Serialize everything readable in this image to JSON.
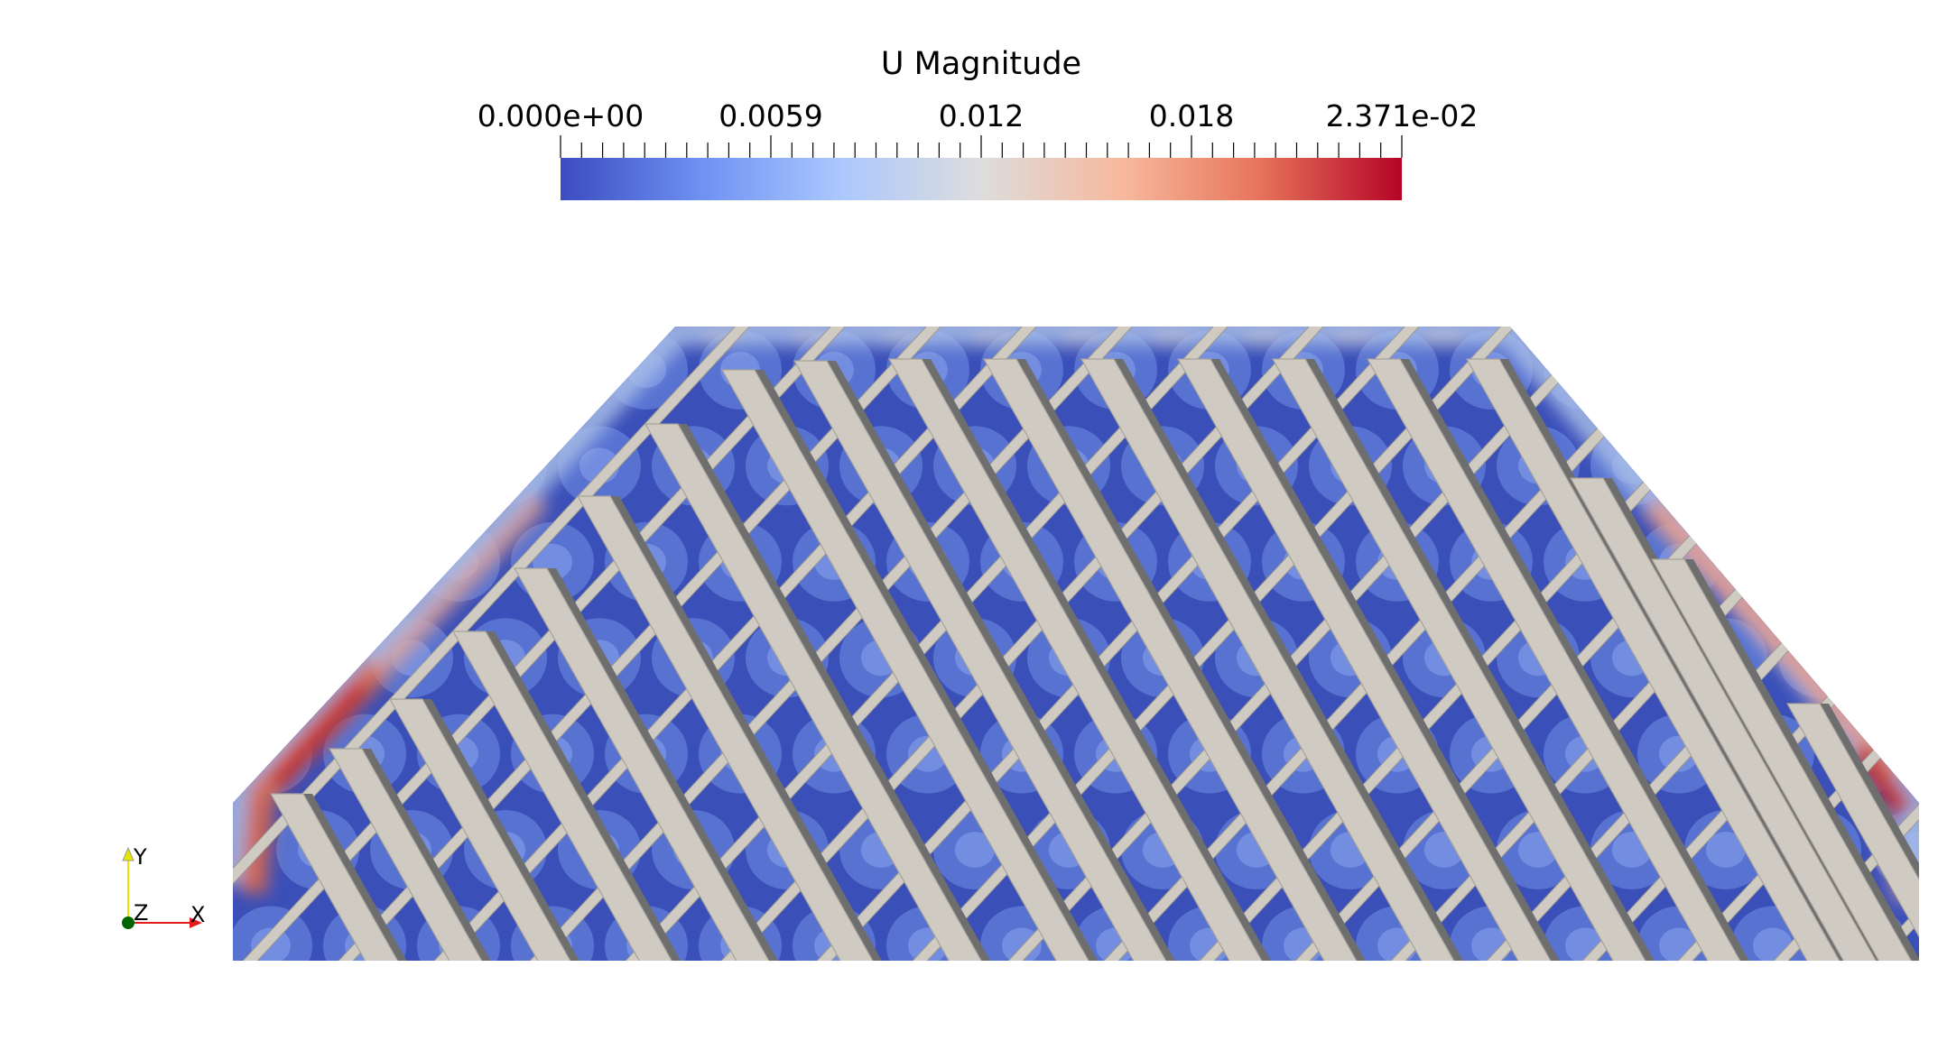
{
  "legend": {
    "title": "U Magnitude",
    "tick_labels": [
      "0.000e+00",
      "0.0059",
      "0.012",
      "0.018",
      "2.371e-02"
    ],
    "range": [
      0.0,
      0.02371
    ],
    "colormap": [
      "#3b4cc0",
      "#6f92f3",
      "#aac7fd",
      "#dddddd",
      "#f7b89c",
      "#e7745b",
      "#b40426"
    ]
  },
  "orientation_axes": {
    "x_label": "X",
    "y_label": "Y",
    "z_label": "Z",
    "x_color": "#e41a1c",
    "y_color": "#e6e600",
    "z_color": "#006400"
  },
  "scene": {
    "background": "#ffffff",
    "fluid_base_color": "#3a4fb8",
    "bar_face_color": "#cfcbc2",
    "bar_edge_color": "#6e6e6e",
    "high_velocity_color": "#c0282d"
  }
}
